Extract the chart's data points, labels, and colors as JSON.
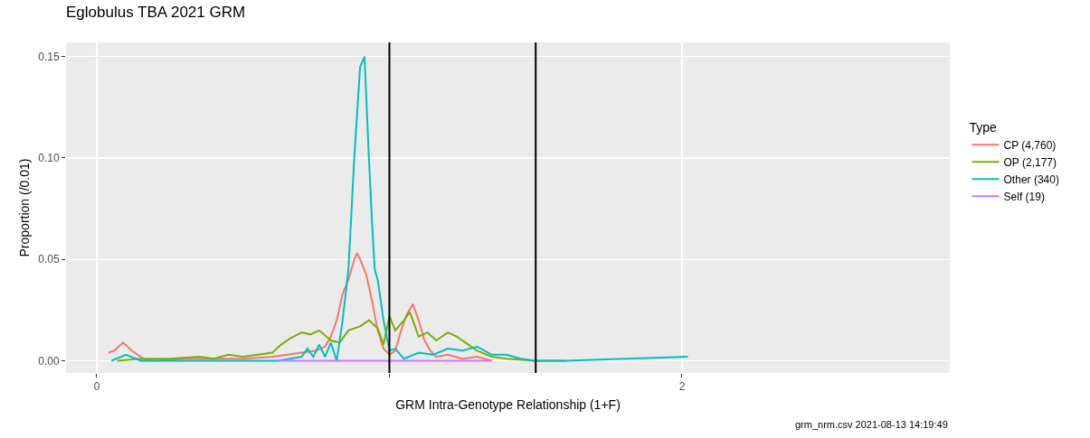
{
  "chart_data": {
    "type": "line",
    "title": "Eglobulus TBA 2021 GRM",
    "xlabel": "GRM Intra-Genotype Relationship (1+F)",
    "ylabel": "Proportion (/0.01)",
    "legend_title": "Type",
    "legend": "right",
    "grid": true,
    "marker": "none",
    "line_style": "solid",
    "xlim": [
      -0.105,
      2.915
    ],
    "xticks": [
      0,
      {
        "value": 1,
        "label": null
      },
      2
    ],
    "ylim": [
      -0.006,
      0.157
    ],
    "yticks": [
      {
        "value": 0,
        "label": "0.00"
      },
      {
        "value": 0.05,
        "label": "0.05"
      },
      {
        "value": 0.1,
        "label": "0.10"
      },
      {
        "value": 0.15,
        "label": "0.15"
      }
    ],
    "ref_lines": [
      {
        "axis": "x",
        "value": 1,
        "color": "#000000"
      },
      {
        "axis": "x",
        "value": 1.5,
        "color": "#000000"
      }
    ],
    "annotations": [
      "grm_nrm.csv 2021-08-13 14:19:49"
    ],
    "series": [
      {
        "name": "CP (4,760)",
        "color": "#f8766d",
        "x": [
          0.04,
          0.06,
          0.09,
          0.12,
          0.16,
          0.2,
          0.3,
          0.4,
          0.5,
          0.6,
          0.65,
          0.7,
          0.75,
          0.78,
          0.8,
          0.82,
          0.84,
          0.86,
          0.88,
          0.89,
          0.9,
          0.92,
          0.94,
          0.96,
          0.98,
          1.0,
          1.02,
          1.04,
          1.06,
          1.08,
          1.1,
          1.12,
          1.14,
          1.16,
          1.2,
          1.25,
          1.3,
          1.35
        ],
        "values": [
          0.004,
          0.005,
          0.009,
          0.005,
          0.001,
          0.0,
          0.001,
          0.001,
          0.001,
          0.002,
          0.003,
          0.004,
          0.005,
          0.007,
          0.012,
          0.02,
          0.033,
          0.04,
          0.05,
          0.053,
          0.05,
          0.043,
          0.03,
          0.015,
          0.006,
          0.003,
          0.005,
          0.015,
          0.023,
          0.028,
          0.02,
          0.01,
          0.005,
          0.002,
          0.003,
          0.001,
          0.002,
          0.0
        ]
      },
      {
        "name": "OP (2,177)",
        "color": "#7cae00",
        "x": [
          0.07,
          0.15,
          0.25,
          0.35,
          0.4,
          0.45,
          0.5,
          0.55,
          0.6,
          0.63,
          0.66,
          0.7,
          0.73,
          0.76,
          0.8,
          0.83,
          0.86,
          0.9,
          0.93,
          0.96,
          0.98,
          1.0,
          1.02,
          1.05,
          1.07,
          1.1,
          1.13,
          1.16,
          1.2,
          1.23,
          1.26,
          1.3,
          1.35,
          1.4,
          1.5,
          1.6
        ],
        "values": [
          0,
          0.001,
          0.001,
          0.002,
          0.001,
          0.003,
          0.002,
          0.003,
          0.004,
          0.008,
          0.011,
          0.014,
          0.013,
          0.015,
          0.01,
          0.009,
          0.015,
          0.017,
          0.02,
          0.016,
          0.008,
          0.022,
          0.015,
          0.02,
          0.024,
          0.012,
          0.014,
          0.01,
          0.014,
          0.012,
          0.009,
          0.005,
          0.002,
          0.001,
          0,
          0
        ]
      },
      {
        "name": "Other (340)",
        "color": "#00bfc4",
        "x": [
          0.05,
          0.1,
          0.15,
          0.3,
          0.5,
          0.62,
          0.7,
          0.72,
          0.74,
          0.76,
          0.78,
          0.8,
          0.82,
          0.84,
          0.86,
          0.88,
          0.9,
          0.915,
          0.93,
          0.94,
          0.95,
          0.96,
          0.98,
          1.0,
          1.02,
          1.05,
          1.1,
          1.15,
          1.2,
          1.25,
          1.3,
          1.35,
          1.4,
          1.45,
          1.5,
          1.6,
          2.02
        ],
        "values": [
          0,
          0.003,
          0,
          0,
          0,
          0,
          0.002,
          0.006,
          0.002,
          0.008,
          0.002,
          0.009,
          0,
          0.02,
          0.045,
          0.1,
          0.145,
          0.15,
          0.1,
          0.07,
          0.045,
          0.04,
          0.02,
          0.005,
          0.006,
          0.001,
          0.004,
          0.003,
          0.006,
          0.005,
          0.007,
          0.003,
          0.003,
          0.001,
          0,
          0,
          0.002
        ]
      },
      {
        "name": "Self (19)",
        "color": "#c77cff",
        "x": [
          0.62,
          0.8,
          1.0,
          1.2,
          1.35
        ],
        "values": [
          0,
          0,
          0,
          0,
          0
        ]
      }
    ]
  }
}
